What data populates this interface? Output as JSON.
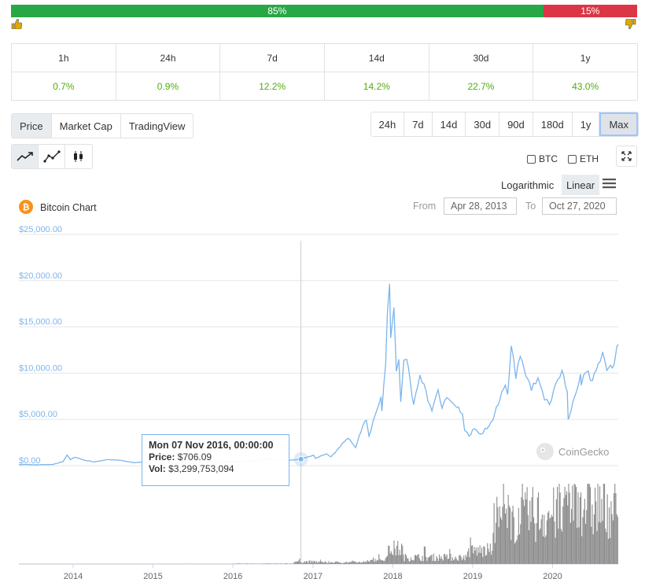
{
  "sentiment": {
    "up_pct": 85,
    "up_label": "85%",
    "down_label": "15%",
    "up_icon": "thumbs-up-icon",
    "down_icon": "thumbs-down-icon"
  },
  "performance": {
    "headers": [
      "1h",
      "24h",
      "7d",
      "14d",
      "30d",
      "1y"
    ],
    "values": [
      "0.7%",
      "0.9%",
      "12.2%",
      "14.2%",
      "22.7%",
      "43.0%"
    ]
  },
  "view_tabs": [
    "Price",
    "Market Cap",
    "TradingView"
  ],
  "range_tabs": [
    "24h",
    "7d",
    "14d",
    "30d",
    "90d",
    "180d",
    "1y",
    "Max"
  ],
  "chart_type_icons": [
    "line-chart-icon",
    "line-markers-chart-icon",
    "candlestick-icon"
  ],
  "compare": {
    "btc": "BTC",
    "eth": "ETH"
  },
  "scale": {
    "log": "Logarithmic",
    "linear": "Linear"
  },
  "chart_header": {
    "title": "Bitcoin Chart",
    "from_label": "From",
    "from_date": "Apr 28, 2013",
    "to_label": "To",
    "to_date": "Oct 27, 2020"
  },
  "tooltip": {
    "date": "Mon 07 Nov 2016, 00:00:00",
    "price_label": "Price:",
    "price": "$706.09",
    "vol_label": "Vol:",
    "vol": "$3,299,753,094"
  },
  "watermark": "CoinGecko",
  "colors": {
    "line": "#7cb5ec",
    "volume": "#8c8c8c",
    "up": "#28a745",
    "down": "#dc3545",
    "pct": "#4eaf0a"
  },
  "chart_data": {
    "type": "line",
    "ylim": [
      0,
      25000
    ],
    "y_ticks": [
      "$0.00",
      "$5,000.00",
      "$10,000.00",
      "$15,000.00",
      "$20,000.00",
      "$25,000.00"
    ],
    "x_ticks": [
      "2014",
      "2015",
      "2016",
      "2017",
      "2018",
      "2019",
      "2020"
    ],
    "series": [
      {
        "points": [
          [
            "2013-04-28",
            135
          ],
          [
            "2013-07-01",
            90
          ],
          [
            "2013-10-01",
            125
          ],
          [
            "2013-11-15",
            420
          ],
          [
            "2013-12-04",
            1150
          ],
          [
            "2013-12-20",
            650
          ],
          [
            "2014-01-10",
            900
          ],
          [
            "2014-02-25",
            560
          ],
          [
            "2014-04-10",
            400
          ],
          [
            "2014-06-01",
            650
          ],
          [
            "2014-08-01",
            590
          ],
          [
            "2014-10-05",
            330
          ],
          [
            "2014-12-01",
            380
          ],
          [
            "2015-01-14",
            180
          ],
          [
            "2015-03-01",
            270
          ],
          [
            "2015-06-01",
            225
          ],
          [
            "2015-08-01",
            280
          ],
          [
            "2015-11-04",
            400
          ],
          [
            "2016-01-01",
            430
          ],
          [
            "2016-03-01",
            420
          ],
          [
            "2016-06-17",
            750
          ],
          [
            "2016-08-01",
            600
          ],
          [
            "2016-10-01",
            610
          ],
          [
            "2016-11-07",
            706
          ],
          [
            "2017-01-04",
            1130
          ],
          [
            "2017-01-12",
            780
          ],
          [
            "2017-03-03",
            1280
          ],
          [
            "2017-03-24",
            950
          ],
          [
            "2017-05-25",
            2600
          ],
          [
            "2017-06-12",
            2950
          ],
          [
            "2017-07-15",
            1950
          ],
          [
            "2017-08-17",
            4300
          ],
          [
            "2017-09-02",
            4900
          ],
          [
            "2017-09-14",
            3200
          ],
          [
            "2017-10-20",
            6000
          ],
          [
            "2017-11-08",
            7450
          ],
          [
            "2017-11-12",
            5900
          ],
          [
            "2017-11-29",
            11000
          ],
          [
            "2017-12-07",
            16500
          ],
          [
            "2017-12-17",
            19650
          ],
          [
            "2017-12-22",
            13800
          ],
          [
            "2018-01-06",
            17100
          ],
          [
            "2018-01-17",
            10200
          ],
          [
            "2018-01-28",
            11500
          ],
          [
            "2018-02-06",
            6900
          ],
          [
            "2018-02-20",
            11400
          ],
          [
            "2018-03-05",
            11500
          ],
          [
            "2018-04-06",
            6600
          ],
          [
            "2018-05-05",
            9800
          ],
          [
            "2018-06-29",
            5900
          ],
          [
            "2018-07-27",
            8200
          ],
          [
            "2018-08-14",
            6200
          ],
          [
            "2018-09-04",
            7350
          ],
          [
            "2018-10-10",
            6550
          ],
          [
            "2018-11-15",
            5600
          ],
          [
            "2018-11-25",
            3800
          ],
          [
            "2018-12-15",
            3200
          ],
          [
            "2019-01-08",
            4000
          ],
          [
            "2019-02-08",
            3400
          ],
          [
            "2019-04-03",
            4900
          ],
          [
            "2019-05-14",
            8000
          ],
          [
            "2019-05-30",
            8700
          ],
          [
            "2019-06-10",
            7700
          ],
          [
            "2019-06-26",
            12950
          ],
          [
            "2019-07-17",
            9400
          ],
          [
            "2019-08-06",
            11800
          ],
          [
            "2019-09-26",
            8100
          ],
          [
            "2019-10-26",
            9500
          ],
          [
            "2019-11-25",
            7100
          ],
          [
            "2019-12-18",
            6600
          ],
          [
            "2020-01-14",
            8800
          ],
          [
            "2020-02-13",
            10300
          ],
          [
            "2020-03-08",
            8000
          ],
          [
            "2020-03-12",
            5000
          ],
          [
            "2020-03-16",
            5200
          ],
          [
            "2020-04-29",
            8800
          ],
          [
            "2020-05-08",
            9900
          ],
          [
            "2020-05-11",
            8700
          ],
          [
            "2020-06-02",
            10100
          ],
          [
            "2020-07-01",
            9200
          ],
          [
            "2020-07-27",
            11000
          ],
          [
            "2020-08-17",
            12300
          ],
          [
            "2020-09-05",
            10300
          ],
          [
            "2020-10-08",
            10900
          ],
          [
            "2020-10-21",
            12900
          ],
          [
            "2020-10-27",
            13100
          ]
        ]
      }
    ],
    "volume_series": {
      "name": "Vol",
      "spans": [
        [
          "2013-04-28",
          "2016-01-01",
          0.05
        ],
        [
          "2016-01-01",
          "2016-10-01",
          0.2
        ],
        [
          "2016-10-01",
          "2017-01-20",
          1.2
        ],
        [
          "2017-01-20",
          "2017-09-01",
          0.9
        ],
        [
          "2017-09-01",
          "2017-12-01",
          2.5
        ],
        [
          "2017-12-01",
          "2018-02-15",
          8
        ],
        [
          "2018-02-15",
          "2018-12-01",
          3.5
        ],
        [
          "2018-12-01",
          "2019-04-01",
          7
        ],
        [
          "2019-04-01",
          "2019-09-01",
          24
        ],
        [
          "2019-09-01",
          "2020-03-01",
          26
        ],
        [
          "2020-03-01",
          "2020-06-01",
          34
        ],
        [
          "2020-06-01",
          "2020-10-27",
          30
        ]
      ]
    }
  }
}
